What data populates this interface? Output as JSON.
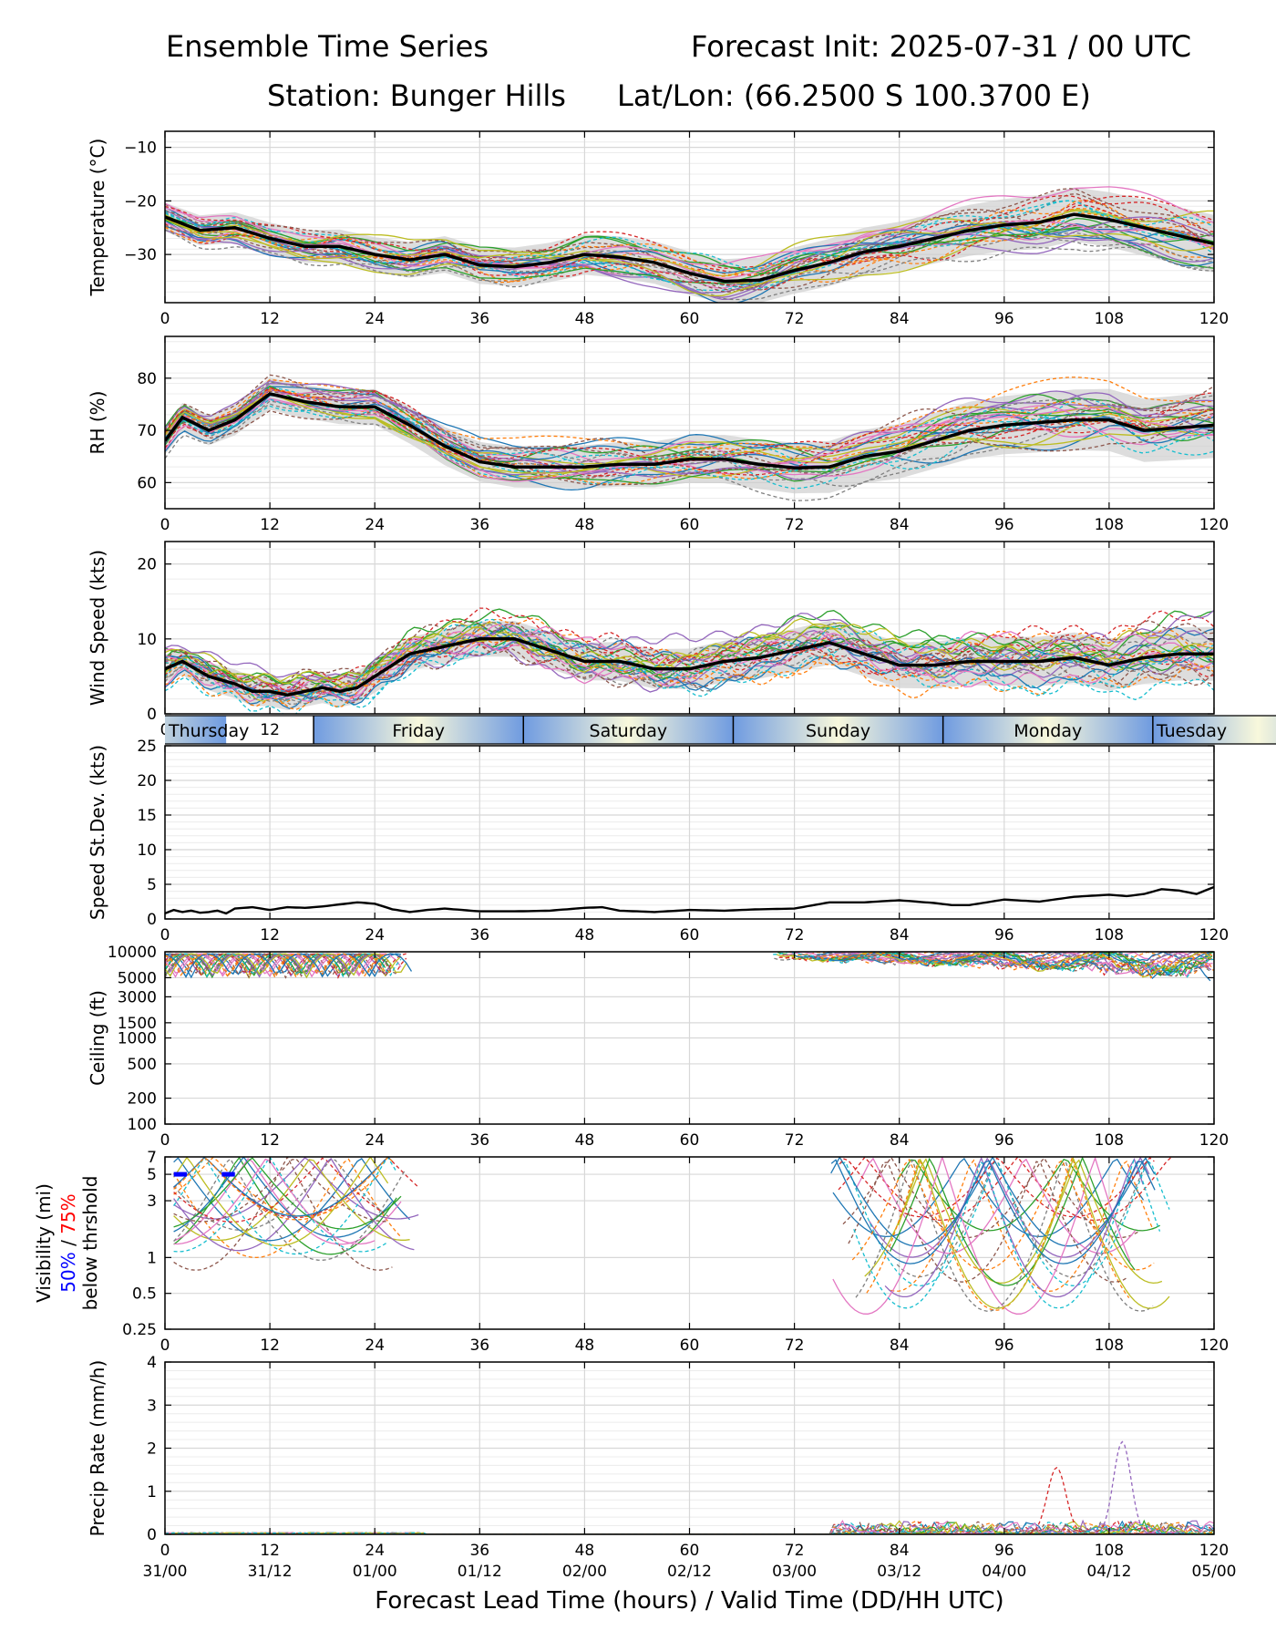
{
  "header": {
    "left": "Ensemble Time Series",
    "right": "Forecast Init: 2025-07-31 / 00 UTC",
    "station": "Station: Bunger Hills",
    "latlon": "Lat/Lon: (66.2500 S 100.3700 E)"
  },
  "chart_data": {
    "type": "line",
    "x_range": [
      0,
      120
    ],
    "x_ticks": [
      "0",
      "12",
      "24",
      "36",
      "48",
      "60",
      "72",
      "84",
      "96",
      "108",
      "120"
    ],
    "valid_time_ticks": [
      "31/00",
      "31/12",
      "01/00",
      "01/12",
      "02/00",
      "02/12",
      "03/00",
      "03/12",
      "04/00",
      "04/12",
      "05/00"
    ],
    "xlabel": "Forecast Lead Time (hours) / Valid Time (DD/HH UTC)",
    "day_band": [
      "Thursday",
      "Friday",
      "Saturday",
      "Sunday",
      "Monday",
      "Tuesday"
    ],
    "ensemble_colors": [
      "#1f77b4",
      "#ff7f0e",
      "#2ca02c",
      "#d62728",
      "#9467bd",
      "#8c564b",
      "#e377c2",
      "#7f7f7f",
      "#bcbd22",
      "#17becf"
    ],
    "panels": [
      {
        "key": "temp",
        "ylabel": "Temperature (°C)",
        "ylim": [
          -39,
          -7
        ],
        "yticks": [
          -30,
          -20,
          -10
        ],
        "mean": {
          "x": [
            0,
            4,
            8,
            12,
            16,
            20,
            24,
            28,
            32,
            36,
            40,
            44,
            48,
            52,
            56,
            60,
            64,
            68,
            72,
            76,
            80,
            84,
            88,
            92,
            96,
            100,
            104,
            108,
            112,
            116,
            120
          ],
          "y": [
            -23,
            -25.5,
            -25,
            -27,
            -28.5,
            -28.5,
            -30,
            -31,
            -30,
            -32,
            -32.3,
            -31.5,
            -30,
            -30.5,
            -31.5,
            -33.5,
            -35,
            -34.8,
            -33,
            -31.5,
            -29.5,
            -28.5,
            -27,
            -25.5,
            -24.5,
            -24,
            -22.5,
            -23.5,
            -25,
            -26.5,
            -28
          ]
        },
        "spread": [
          3,
          6
        ]
      },
      {
        "key": "rh",
        "ylabel": "RH (%)",
        "ylim": [
          55,
          88
        ],
        "yticks": [
          60,
          70,
          80
        ],
        "mean": {
          "x": [
            0,
            2,
            5,
            8,
            12,
            16,
            20,
            24,
            28,
            32,
            36,
            40,
            44,
            48,
            52,
            56,
            60,
            64,
            68,
            72,
            76,
            80,
            84,
            88,
            92,
            96,
            100,
            104,
            108,
            112,
            116,
            120
          ],
          "y": [
            68,
            72.5,
            70,
            72,
            77,
            75.5,
            74.5,
            74.5,
            71,
            67,
            64,
            63,
            63,
            63,
            63.5,
            63.5,
            64.5,
            64.5,
            63.5,
            62.8,
            63,
            65,
            66,
            68,
            70,
            71,
            71.5,
            72,
            72,
            70,
            70.5,
            71
          ]
        },
        "spread": [
          3,
          7
        ]
      },
      {
        "key": "wind",
        "ylabel": "Wind Speed (kts)",
        "ylim": [
          0,
          23
        ],
        "yticks": [
          0,
          10,
          20
        ],
        "mean": {
          "x": [
            0,
            2,
            5,
            8,
            10,
            12,
            14,
            16,
            18,
            20,
            22,
            24,
            28,
            32,
            36,
            40,
            44,
            48,
            52,
            56,
            60,
            64,
            68,
            72,
            76,
            80,
            84,
            88,
            92,
            96,
            100,
            104,
            108,
            112,
            116,
            120
          ],
          "y": [
            6,
            7,
            5,
            4,
            3,
            3,
            2.5,
            3,
            3.5,
            3,
            3.5,
            5,
            8,
            9,
            10,
            10,
            8.5,
            7,
            7,
            6,
            6,
            7,
            7.5,
            8.5,
            9.5,
            8,
            6.5,
            6.5,
            7,
            7,
            7,
            7.5,
            6.5,
            7.5,
            8,
            8
          ]
        },
        "spread": [
          2,
          4
        ]
      },
      {
        "key": "sd",
        "ylabel": "Speed St.Dev. (kts)",
        "ylim": [
          0,
          25
        ],
        "yticks": [
          0,
          5,
          10,
          15,
          20,
          25
        ],
        "mean": {
          "x": [
            0,
            1,
            2,
            3,
            4,
            5,
            6,
            7,
            8,
            10,
            12,
            14,
            16,
            18,
            20,
            22,
            24,
            26,
            28,
            30,
            32,
            36,
            40,
            44,
            48,
            50,
            52,
            56,
            60,
            64,
            68,
            72,
            76,
            80,
            84,
            88,
            90,
            92,
            96,
            100,
            104,
            108,
            110,
            112,
            114,
            116,
            118,
            120
          ],
          "y": [
            0.8,
            1.3,
            1,
            1.2,
            0.9,
            1,
            1.2,
            0.8,
            1.5,
            1.7,
            1.3,
            1.7,
            1.6,
            1.8,
            2.1,
            2.4,
            2.2,
            1.4,
            1,
            1.3,
            1.5,
            1.1,
            1.1,
            1.2,
            1.6,
            1.7,
            1.2,
            1,
            1.3,
            1.2,
            1.4,
            1.5,
            2.4,
            2.4,
            2.7,
            2.3,
            2,
            2,
            2.8,
            2.5,
            3.2,
            3.5,
            3.3,
            3.6,
            4.3,
            4.1,
            3.6,
            4.6
          ]
        },
        "spread": [
          0,
          0
        ]
      },
      {
        "key": "ceil",
        "ylabel": "Ceiling (ft)",
        "ylim": [
          100,
          10000
        ],
        "log": true,
        "yticks": [
          100,
          200,
          500,
          1000,
          1500,
          3000,
          5000,
          10000
        ],
        "ytick_labels": [
          "100",
          "200",
          "500",
          "1000",
          "1500",
          "3000",
          "5000",
          "10000"
        ]
      },
      {
        "key": "vis",
        "ylabel": "Visibility (mi)",
        "ylim": [
          0.25,
          7
        ],
        "log": true,
        "yticks": [
          0.25,
          0.5,
          1,
          3,
          5,
          7
        ],
        "ytick_labels": [
          "0.25",
          "0.5",
          "1",
          "3",
          "5",
          "7"
        ],
        "ylabel_p50": "50%",
        "ylabel_sep": " / ",
        "ylabel_p75": "75%",
        "ylabel_thresh": "below thrshold"
      },
      {
        "key": "precip",
        "ylabel": "Precip Rate (mm/h)",
        "ylim": [
          0,
          4
        ],
        "yticks": [
          0,
          1,
          2,
          3,
          4
        ]
      }
    ]
  }
}
